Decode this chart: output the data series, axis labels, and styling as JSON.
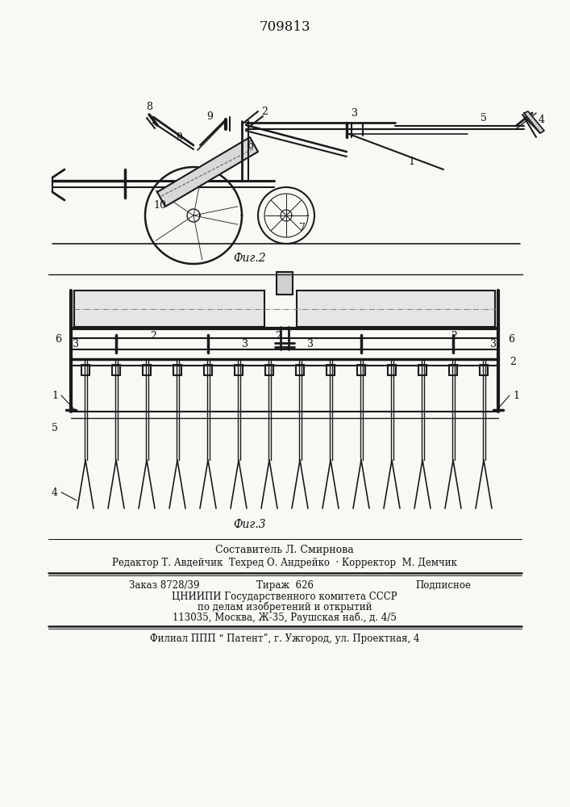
{
  "patent_number": "709813",
  "fig2_label": "Фиг.2",
  "fig3_label": "Фиг.3",
  "footer_line1": "Составитель Л. Смирнова",
  "footer_line2": "Редактор Т. Авдейчик  Техред О. Андрейко  · Корректор  М. Демчик",
  "footer_line3_left": "Заказ 8728/39",
  "footer_line3_mid": "Тираж  626",
  "footer_line3_right": "Подписное",
  "footer_line4": "ЦНИИПИ Государственного комитета СССР",
  "footer_line5": "по делам изобретений и открытий",
  "footer_line6": "113035, Москва, Ж-35, Раушская наб., д. 4/5",
  "footer_line7": "Филиал ППП “ Патент”, г. Ужгород, ул. Проектная, 4",
  "bg_color": "#f8f8f5",
  "line_color": "#1a1a1a",
  "text_color": "#111111"
}
